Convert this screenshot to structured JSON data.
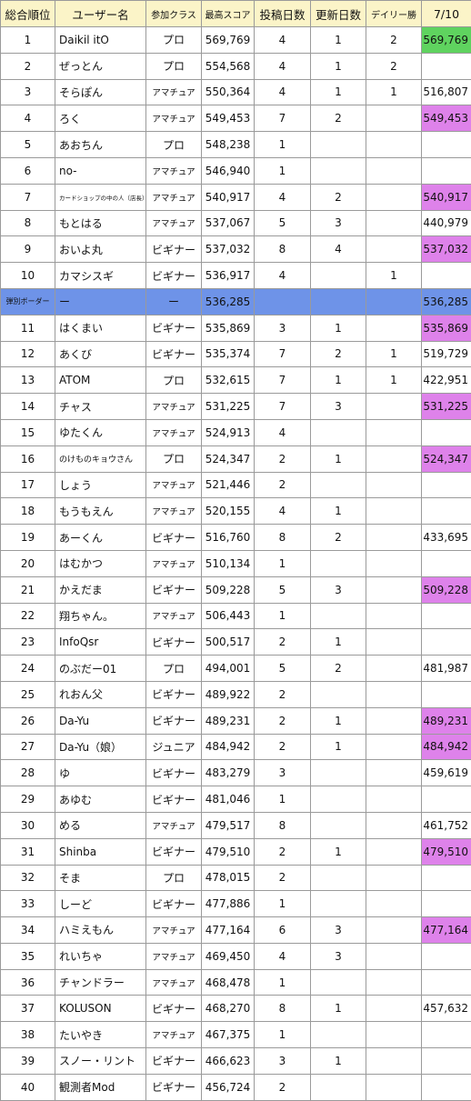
{
  "headers": {
    "rank": "総合順位",
    "user": "ユーザー名",
    "cls": "参加クラス",
    "best": "最高スコア",
    "posts": "投稿日数",
    "updates": "更新日数",
    "daily": "デイリー勝",
    "day": "7/10"
  },
  "colors": {
    "header_bg": "#fbf4c8",
    "green": "#5fd35f",
    "purple": "#de82ea",
    "border_row": "#6e93e8"
  },
  "rows": [
    {
      "rank": "1",
      "name": "Daikil itO",
      "cls": "プロ",
      "best": "569,769",
      "posts": "4",
      "updates": "1",
      "daily": "2",
      "day": "569,769",
      "hl": "green"
    },
    {
      "rank": "2",
      "name": "ぜっとん",
      "cls": "プロ",
      "best": "554,568",
      "posts": "4",
      "updates": "1",
      "daily": "2",
      "day": "",
      "hl": ""
    },
    {
      "rank": "3",
      "name": "そらぽん",
      "cls": "アマチュア",
      "best": "550,364",
      "posts": "4",
      "updates": "1",
      "daily": "1",
      "day": "516,807",
      "hl": ""
    },
    {
      "rank": "4",
      "name": "ろく",
      "cls": "アマチュア",
      "best": "549,453",
      "posts": "7",
      "updates": "2",
      "daily": "",
      "day": "549,453",
      "hl": "purple"
    },
    {
      "rank": "5",
      "name": "あおちん",
      "cls": "プロ",
      "best": "548,238",
      "posts": "1",
      "updates": "",
      "daily": "",
      "day": "",
      "hl": ""
    },
    {
      "rank": "6",
      "name": "no-",
      "cls": "アマチュア",
      "best": "546,940",
      "posts": "1",
      "updates": "",
      "daily": "",
      "day": "",
      "hl": ""
    },
    {
      "rank": "7",
      "name": "カードショップの中の人（店長）",
      "cls": "アマチュア",
      "best": "540,917",
      "posts": "4",
      "updates": "2",
      "daily": "",
      "day": "540,917",
      "hl": "purple",
      "tiny": true
    },
    {
      "rank": "8",
      "name": "もとはる",
      "cls": "アマチュア",
      "best": "537,067",
      "posts": "5",
      "updates": "3",
      "daily": "",
      "day": "440,979",
      "hl": ""
    },
    {
      "rank": "9",
      "name": "おいよ丸",
      "cls": "ビギナー",
      "best": "537,032",
      "posts": "8",
      "updates": "4",
      "daily": "",
      "day": "537,032",
      "hl": "purple"
    },
    {
      "rank": "10",
      "name": "カマシスギ",
      "cls": "ビギナー",
      "best": "536,917",
      "posts": "4",
      "updates": "",
      "daily": "1",
      "day": "",
      "hl": ""
    },
    {
      "rank": "弾別ボーダー",
      "name": "ー",
      "cls": "ー",
      "best": "536,285",
      "posts": "",
      "updates": "",
      "daily": "",
      "day": "536,285",
      "hl": "",
      "border": true
    },
    {
      "rank": "11",
      "name": "はくまい",
      "cls": "ビギナー",
      "best": "535,869",
      "posts": "3",
      "updates": "1",
      "daily": "",
      "day": "535,869",
      "hl": "purple"
    },
    {
      "rank": "12",
      "name": "あくび",
      "cls": "ビギナー",
      "best": "535,374",
      "posts": "7",
      "updates": "2",
      "daily": "1",
      "day": "519,729",
      "hl": ""
    },
    {
      "rank": "13",
      "name": "ATOM",
      "cls": "プロ",
      "best": "532,615",
      "posts": "7",
      "updates": "1",
      "daily": "1",
      "day": "422,951",
      "hl": ""
    },
    {
      "rank": "14",
      "name": "チャス",
      "cls": "アマチュア",
      "best": "531,225",
      "posts": "7",
      "updates": "3",
      "daily": "",
      "day": "531,225",
      "hl": "purple"
    },
    {
      "rank": "15",
      "name": "ゆたくん",
      "cls": "アマチュア",
      "best": "524,913",
      "posts": "4",
      "updates": "",
      "daily": "",
      "day": "",
      "hl": ""
    },
    {
      "rank": "16",
      "name": "のけものキョウさん",
      "cls": "プロ",
      "best": "524,347",
      "posts": "2",
      "updates": "1",
      "daily": "",
      "day": "524,347",
      "hl": "purple",
      "small": true
    },
    {
      "rank": "17",
      "name": "しょう",
      "cls": "アマチュア",
      "best": "521,446",
      "posts": "2",
      "updates": "",
      "daily": "",
      "day": "",
      "hl": ""
    },
    {
      "rank": "18",
      "name": "もうもえん",
      "cls": "アマチュア",
      "best": "520,155",
      "posts": "4",
      "updates": "1",
      "daily": "",
      "day": "",
      "hl": ""
    },
    {
      "rank": "19",
      "name": "あーくん",
      "cls": "ビギナー",
      "best": "516,760",
      "posts": "8",
      "updates": "2",
      "daily": "",
      "day": "433,695",
      "hl": ""
    },
    {
      "rank": "20",
      "name": "はむかつ",
      "cls": "アマチュア",
      "best": "510,134",
      "posts": "1",
      "updates": "",
      "daily": "",
      "day": "",
      "hl": ""
    },
    {
      "rank": "21",
      "name": "かえだま",
      "cls": "ビギナー",
      "best": "509,228",
      "posts": "5",
      "updates": "3",
      "daily": "",
      "day": "509,228",
      "hl": "purple"
    },
    {
      "rank": "22",
      "name": "翔ちゃん。",
      "cls": "アマチュア",
      "best": "506,443",
      "posts": "1",
      "updates": "",
      "daily": "",
      "day": "",
      "hl": ""
    },
    {
      "rank": "23",
      "name": "InfoQsr",
      "cls": "ビギナー",
      "best": "500,517",
      "posts": "2",
      "updates": "1",
      "daily": "",
      "day": "",
      "hl": ""
    },
    {
      "rank": "24",
      "name": "のぶだー01",
      "cls": "プロ",
      "best": "494,001",
      "posts": "5",
      "updates": "2",
      "daily": "",
      "day": "481,987",
      "hl": ""
    },
    {
      "rank": "25",
      "name": "れおん父",
      "cls": "ビギナー",
      "best": "489,922",
      "posts": "2",
      "updates": "",
      "daily": "",
      "day": "",
      "hl": ""
    },
    {
      "rank": "26",
      "name": "Da-Yu",
      "cls": "ビギナー",
      "best": "489,231",
      "posts": "2",
      "updates": "1",
      "daily": "",
      "day": "489,231",
      "hl": "purple"
    },
    {
      "rank": "27",
      "name": "Da-Yu（娘）",
      "cls": "ジュニア",
      "best": "484,942",
      "posts": "2",
      "updates": "1",
      "daily": "",
      "day": "484,942",
      "hl": "purple"
    },
    {
      "rank": "28",
      "name": "ゆ",
      "cls": "ビギナー",
      "best": "483,279",
      "posts": "3",
      "updates": "",
      "daily": "",
      "day": "459,619",
      "hl": ""
    },
    {
      "rank": "29",
      "name": "あゆむ",
      "cls": "ビギナー",
      "best": "481,046",
      "posts": "1",
      "updates": "",
      "daily": "",
      "day": "",
      "hl": ""
    },
    {
      "rank": "30",
      "name": "める",
      "cls": "アマチュア",
      "best": "479,517",
      "posts": "8",
      "updates": "",
      "daily": "",
      "day": "461,752",
      "hl": ""
    },
    {
      "rank": "31",
      "name": "Shinba",
      "cls": "ビギナー",
      "best": "479,510",
      "posts": "2",
      "updates": "1",
      "daily": "",
      "day": "479,510",
      "hl": "purple"
    },
    {
      "rank": "32",
      "name": "そま",
      "cls": "プロ",
      "best": "478,015",
      "posts": "2",
      "updates": "",
      "daily": "",
      "day": "",
      "hl": ""
    },
    {
      "rank": "33",
      "name": "しーど",
      "cls": "ビギナー",
      "best": "477,886",
      "posts": "1",
      "updates": "",
      "daily": "",
      "day": "",
      "hl": ""
    },
    {
      "rank": "34",
      "name": "ハミえもん",
      "cls": "アマチュア",
      "best": "477,164",
      "posts": "6",
      "updates": "3",
      "daily": "",
      "day": "477,164",
      "hl": "purple"
    },
    {
      "rank": "35",
      "name": "れいちゃ",
      "cls": "アマチュア",
      "best": "469,450",
      "posts": "4",
      "updates": "3",
      "daily": "",
      "day": "",
      "hl": ""
    },
    {
      "rank": "36",
      "name": "チャンドラー",
      "cls": "アマチュア",
      "best": "468,478",
      "posts": "1",
      "updates": "",
      "daily": "",
      "day": "",
      "hl": ""
    },
    {
      "rank": "37",
      "name": "KOLUSON",
      "cls": "ビギナー",
      "best": "468,270",
      "posts": "8",
      "updates": "1",
      "daily": "",
      "day": "457,632",
      "hl": ""
    },
    {
      "rank": "38",
      "name": "たいやき",
      "cls": "アマチュア",
      "best": "467,375",
      "posts": "1",
      "updates": "",
      "daily": "",
      "day": "",
      "hl": ""
    },
    {
      "rank": "39",
      "name": "スノー・リント",
      "cls": "ビギナー",
      "best": "466,623",
      "posts": "3",
      "updates": "1",
      "daily": "",
      "day": "",
      "hl": ""
    },
    {
      "rank": "40",
      "name": "観測者Mod",
      "cls": "ビギナー",
      "best": "456,724",
      "posts": "2",
      "updates": "",
      "daily": "",
      "day": "",
      "hl": ""
    }
  ]
}
